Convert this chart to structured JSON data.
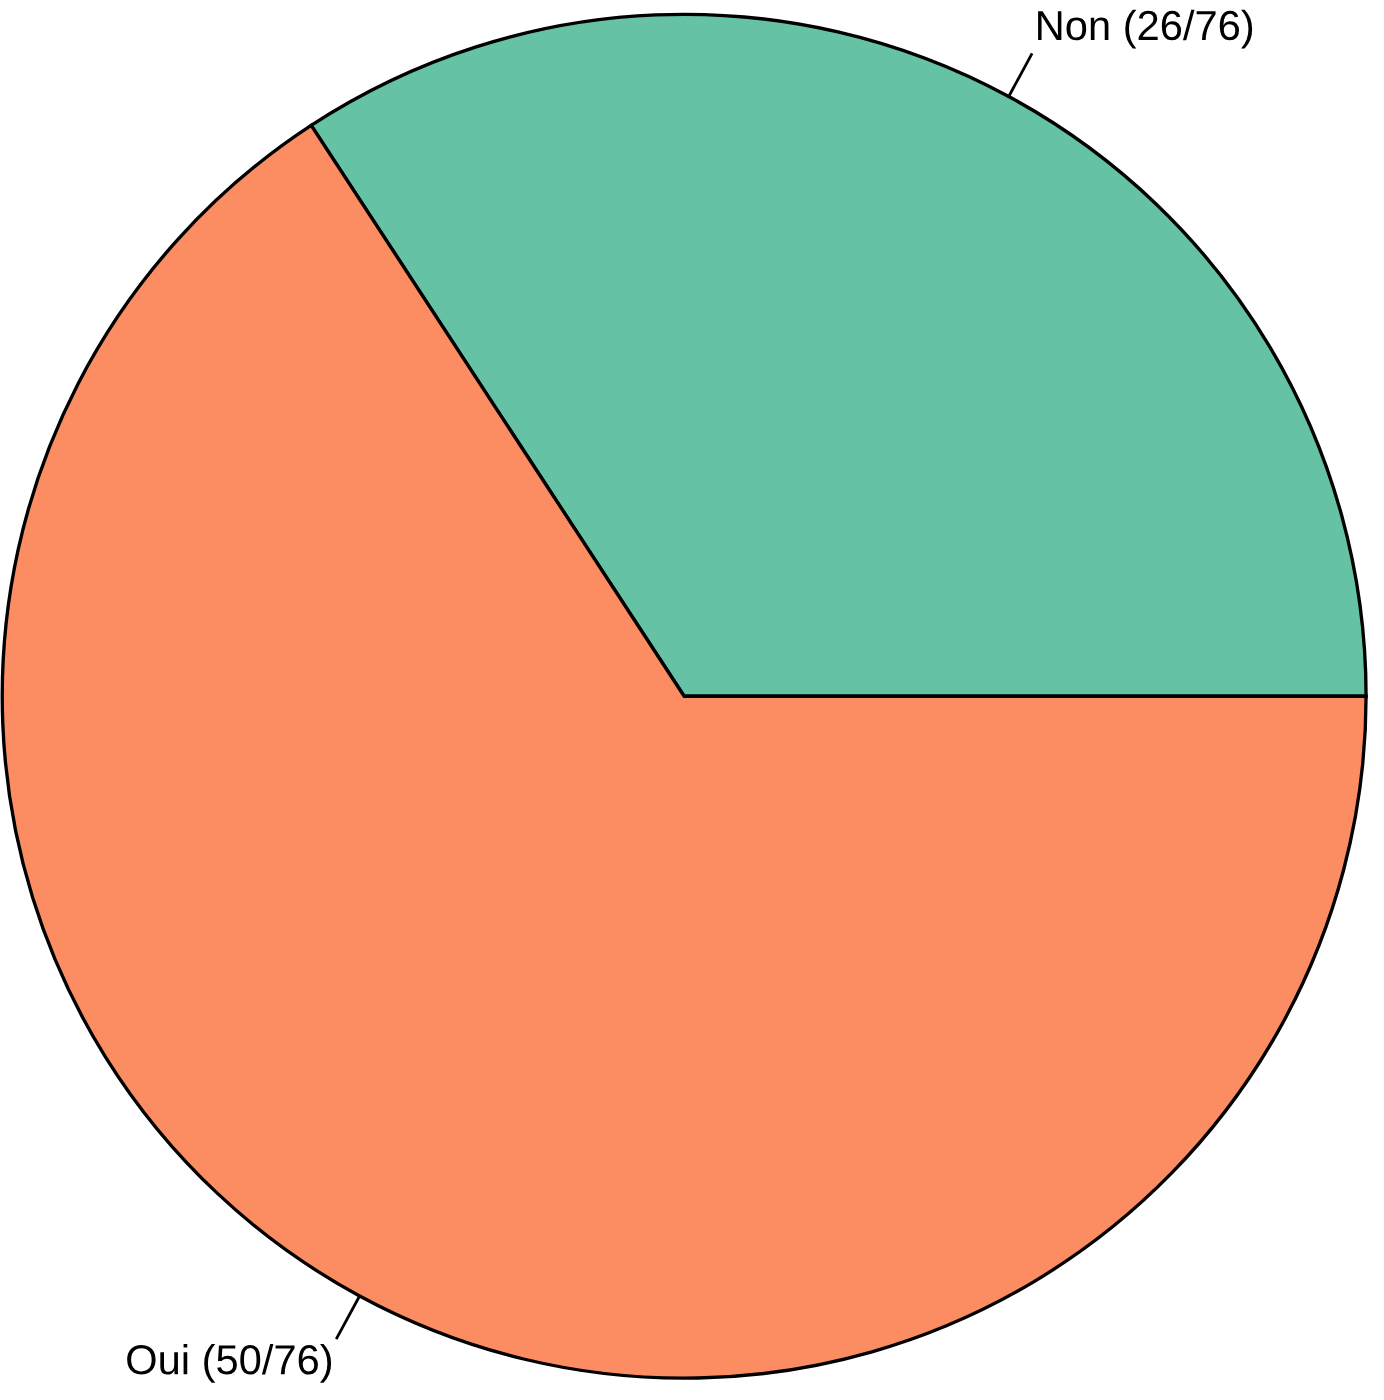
{
  "chart_data": {
    "type": "pie",
    "categories": [
      "Non (26/76)",
      "Oui (50/76)"
    ],
    "values": [
      26,
      50
    ],
    "colors": [
      "#66c2a5",
      "#fc8d62"
    ],
    "legend": false
  }
}
